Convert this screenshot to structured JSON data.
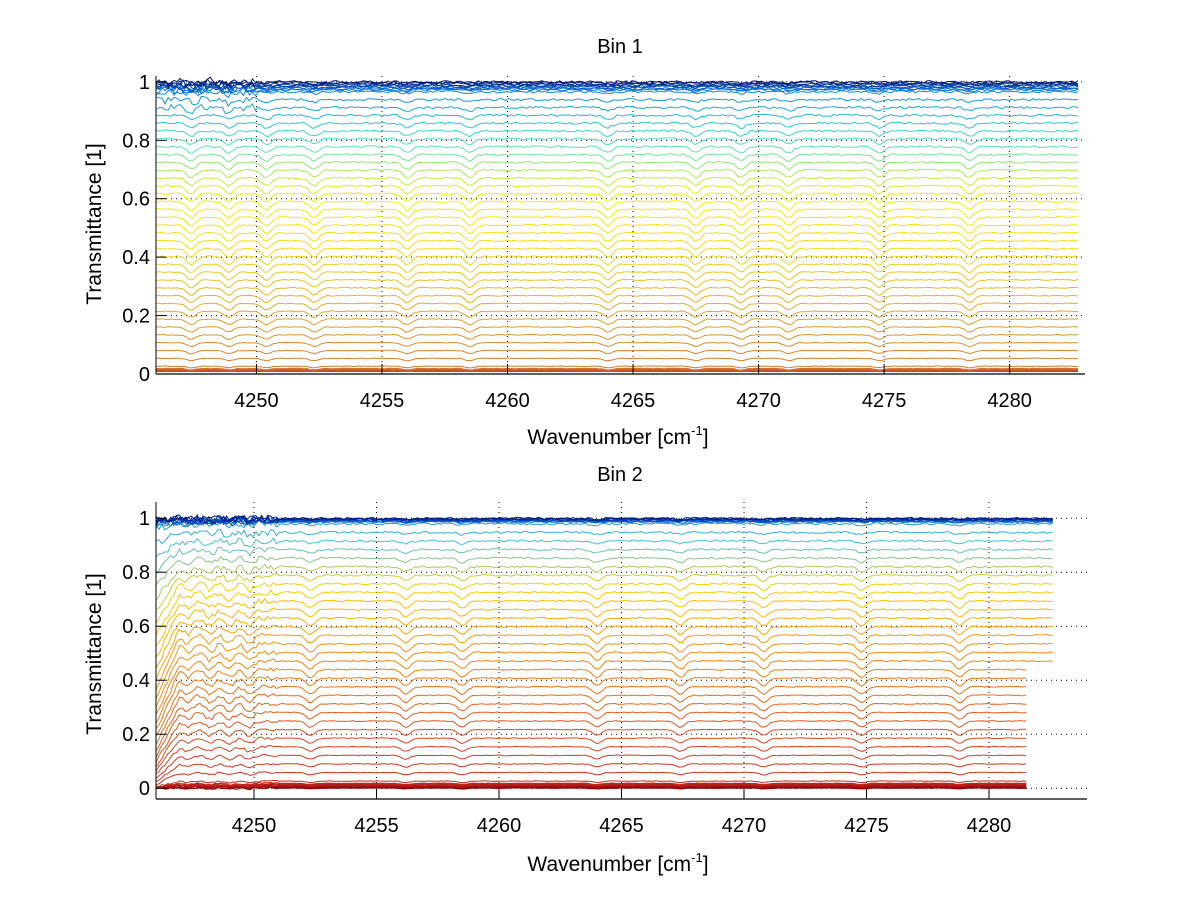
{
  "chart_data": [
    {
      "type": "line",
      "title": "Bin 1",
      "xlabel": "Wavenumber [cm",
      "xlabel_sup": "-1",
      "xlabel_end": "]",
      "ylabel": "Transmittance [1]",
      "xlim": [
        4246,
        4283
      ],
      "ylim": [
        0,
        1.02
      ],
      "grid": true,
      "xticks": [
        4250,
        4255,
        4260,
        4265,
        4270,
        4275,
        4280
      ],
      "xtick_labels": [
        "4250",
        "4255",
        "4260",
        "4265",
        "4270",
        "4275",
        "4280"
      ],
      "yticks": [
        0,
        0.2,
        0.4,
        0.6,
        0.8,
        1
      ],
      "ytick_labels": [
        "0",
        "0.2",
        "0.4",
        "0.6",
        "0.8",
        "1"
      ],
      "x_range_data": [
        4246,
        4282.8
      ],
      "series_count": 60,
      "series_levels_desc": "nested transmittance spectra from ~0 to 1",
      "absorption_lines": [
        4247.4,
        4248.9,
        4250.4,
        4252.3,
        4256.0,
        4258.5,
        4264.0,
        4267.5,
        4269.3,
        4271.2,
        4274.8,
        4278.4
      ],
      "colormap": [
        "#ff0000",
        "#c8402a",
        "#d0782e",
        "#e0a830",
        "#f0d820",
        "#f8f000",
        "#40e0d0",
        "#0070e0",
        "#00106e"
      ]
    },
    {
      "type": "line",
      "title": "Bin 2",
      "xlabel": "Wavenumber [cm",
      "xlabel_sup": "-1",
      "xlabel_end": "]",
      "ylabel": "Transmittance [1]",
      "xlim": [
        4246,
        4284
      ],
      "ylim": [
        -0.04,
        1.06
      ],
      "grid": true,
      "xticks": [
        4250,
        4255,
        4260,
        4265,
        4270,
        4275,
        4280
      ],
      "xtick_labels": [
        "4250",
        "4255",
        "4260",
        "4265",
        "4270",
        "4275",
        "4280"
      ],
      "yticks": [
        0,
        0.2,
        0.4,
        0.6,
        0.8,
        1
      ],
      "ytick_labels": [
        "0",
        "0.2",
        "0.4",
        "0.6",
        "0.8",
        "1"
      ],
      "x_range_data": [
        4246,
        4282.6
      ],
      "series_count": 50,
      "series_levels_desc": "nested transmittance spectra from ~0 to 1",
      "absorption_lines": [
        4247.3,
        4248.2,
        4249.0,
        4249.8,
        4252.3,
        4256.2,
        4258.5,
        4264.0,
        4267.4,
        4270.8,
        4274.8,
        4278.8
      ],
      "colormap": [
        "#8b0000",
        "#b01818",
        "#cc3020",
        "#e05020",
        "#f07818",
        "#ff9a10",
        "#ffd000",
        "#40c0e0",
        "#0050d0",
        "#001a80"
      ]
    }
  ]
}
